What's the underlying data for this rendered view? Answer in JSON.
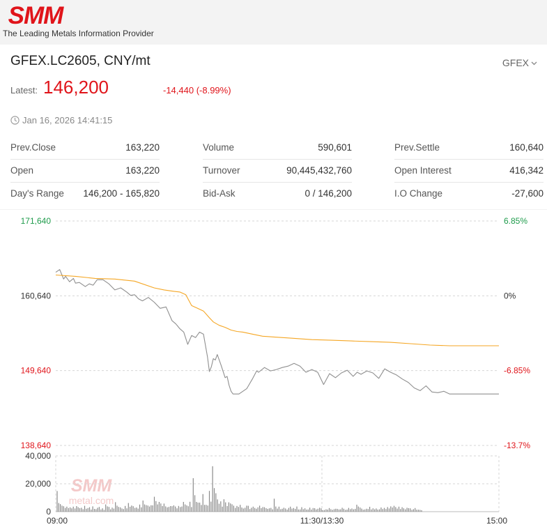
{
  "header": {
    "logo_text": "SMM",
    "tagline": "The Leading Metals Information Provider"
  },
  "quote": {
    "symbol_title": "GFEX.LC2605, CNY/mt",
    "exchange_selector": "GFEX",
    "latest_label": "Latest:",
    "latest_price": "146,200",
    "change": "-14,440 (-8.99%)",
    "timestamp": "Jan 16, 2026 14:41:15"
  },
  "stats": [
    [
      {
        "label": "Prev.Close",
        "value": "163,220"
      },
      {
        "label": "Open",
        "value": "163,220"
      },
      {
        "label": "Day's Range",
        "value": "146,200 - 165,820"
      }
    ],
    [
      {
        "label": "Volume",
        "value": "590,601"
      },
      {
        "label": "Turnover",
        "value": "90,445,432,760"
      },
      {
        "label": "Bid-Ask",
        "value": "0 / 146,200"
      }
    ],
    [
      {
        "label": "Prev.Settle",
        "value": "160,640"
      },
      {
        "label": "Open Interest",
        "value": "416,342"
      },
      {
        "label": "I.O Change",
        "value": "-27,600"
      }
    ]
  ],
  "colors": {
    "up": "#1e9b4b",
    "down": "#e0141a",
    "neutral": "#333333",
    "price_line": "#8f8f8f",
    "avg_line": "#f5a623",
    "volume_bar": "#8a8a8a",
    "grid": "#d6d6d6",
    "watermark": "#f4c9c9"
  },
  "chart_data": [
    {
      "type": "line",
      "ylim": [
        138640,
        171640
      ],
      "reference": 160640,
      "left_ticks": [
        {
          "value": 171640,
          "label": "171,640",
          "tone": "up"
        },
        {
          "value": 160640,
          "label": "160,640",
          "tone": "neutral"
        },
        {
          "value": 149640,
          "label": "149,640",
          "tone": "down"
        },
        {
          "value": 138640,
          "label": "138,640",
          "tone": "down"
        }
      ],
      "right_ticks": [
        {
          "value": 171640,
          "label": "6.85%",
          "tone": "up"
        },
        {
          "value": 160640,
          "label": "0%",
          "tone": "neutral"
        },
        {
          "value": 149640,
          "label": "-6.85%",
          "tone": "down"
        },
        {
          "value": 138640,
          "label": "-13.7%",
          "tone": "down"
        }
      ],
      "x_range": [
        0,
        225
      ],
      "series": [
        {
          "role": "price",
          "x": [
            0,
            2,
            3,
            4,
            5,
            7,
            9,
            10,
            12,
            15,
            17,
            19,
            21,
            24,
            27,
            30,
            33,
            36,
            38,
            40,
            42,
            44,
            47,
            50,
            53,
            56,
            59,
            61,
            63,
            65,
            67,
            69,
            71,
            73,
            75,
            77,
            78,
            79,
            80,
            81,
            82,
            84,
            86,
            87,
            88,
            89,
            90,
            91,
            93,
            97,
            100,
            102,
            103,
            106,
            109,
            112,
            115,
            118,
            121,
            124,
            127,
            130,
            133,
            136,
            139,
            142,
            145,
            148,
            151,
            153,
            155,
            158,
            161,
            164,
            167,
            170,
            173,
            176,
            179,
            182,
            185,
            188,
            191,
            194,
            197,
            200,
            203,
            206,
            209,
            212,
            215,
            218,
            221,
            225
          ],
          "values": [
            164100,
            164500,
            163800,
            163100,
            163500,
            162700,
            163200,
            162500,
            162600,
            162000,
            162400,
            162200,
            163000,
            163000,
            162400,
            161500,
            161800,
            161200,
            160700,
            160800,
            160200,
            159900,
            160400,
            159700,
            158800,
            159000,
            157000,
            156500,
            155800,
            155300,
            153500,
            154800,
            154500,
            155300,
            155000,
            151700,
            149500,
            150200,
            151400,
            151200,
            152000,
            150400,
            148600,
            148800,
            147500,
            146600,
            146200,
            146200,
            146200,
            147000,
            148500,
            149600,
            149400,
            150100,
            149600,
            149800,
            150100,
            150300,
            150700,
            150300,
            149400,
            149800,
            149400,
            147600,
            149200,
            148600,
            149300,
            149700,
            148800,
            149400,
            149100,
            149600,
            149300,
            148500,
            149900,
            149400,
            149000,
            148400,
            147900,
            147100,
            146700,
            147400,
            146500,
            146400,
            146600,
            146200,
            146200,
            146200,
            146200,
            146200,
            146200,
            146200,
            146200,
            146200
          ]
        },
        {
          "role": "average",
          "x": [
            0,
            10,
            20,
            30,
            40,
            50,
            55,
            60,
            63,
            66,
            69,
            72,
            75,
            78,
            80,
            83,
            86,
            89,
            92,
            95,
            100,
            105,
            110,
            120,
            130,
            140,
            150,
            160,
            170,
            180,
            190,
            200,
            210,
            225
          ],
          "values": [
            163700,
            163500,
            163200,
            163100,
            162800,
            161800,
            161500,
            161300,
            161200,
            160800,
            159200,
            158800,
            158400,
            157400,
            156800,
            156300,
            156000,
            155600,
            155400,
            155300,
            155000,
            154700,
            154600,
            154400,
            154200,
            154100,
            154000,
            153900,
            153800,
            153600,
            153400,
            153300,
            153300,
            153300
          ]
        }
      ]
    },
    {
      "type": "bar",
      "ylim": [
        0,
        40000
      ],
      "y_ticks": [
        {
          "value": 40000,
          "label": "40,000"
        },
        {
          "value": 20000,
          "label": "20,000"
        },
        {
          "value": 0,
          "label": "0"
        }
      ],
      "x_ticks": [
        {
          "x": 0,
          "label": "09:00"
        },
        {
          "x": 135,
          "label": "11:30/13:30"
        },
        {
          "x": 225,
          "label": "15:00"
        }
      ],
      "watermark": {
        "logo": "SMM",
        "site": "metal.com"
      },
      "values": [
        14800,
        6200,
        5400,
        4300,
        3900,
        2700,
        3600,
        2600,
        3100,
        2400,
        3600,
        2300,
        4000,
        3200,
        2500,
        2800,
        1800,
        4200,
        2100,
        2600,
        3200,
        1500,
        3800,
        2000,
        1800,
        2800,
        3400,
        1600,
        2400,
        1300,
        5200,
        3800,
        3400,
        1700,
        2900,
        2200,
        6800,
        4300,
        3400,
        3100,
        2300,
        1900,
        4100,
        2400,
        6200,
        3500,
        4400,
        3900,
        2700,
        3000,
        2200,
        5100,
        3100,
        8000,
        5200,
        4700,
        4400,
        3700,
        4600,
        4500,
        10700,
        7600,
        5200,
        7000,
        5900,
        4000,
        5800,
        3800,
        3100,
        3400,
        4000,
        3900,
        4500,
        3700,
        2400,
        4100,
        3300,
        3700,
        7000,
        5200,
        4500,
        3900,
        7100,
        3300,
        24000,
        11800,
        7000,
        6500,
        6500,
        4800,
        12600,
        4900,
        4900,
        4400,
        14900,
        7200,
        32600,
        16900,
        13200,
        8800,
        5700,
        7400,
        3600,
        8900,
        6700,
        4000,
        6700,
        5900,
        5300,
        4300,
        2700,
        4100,
        3400,
        4900,
        3000,
        2300,
        2800,
        4300,
        4200,
        1900,
        2800,
        3600,
        2700,
        2100,
        3100,
        4300,
        2500,
        3300,
        3200,
        2500,
        2000,
        2400,
        2700,
        1700,
        9300,
        3700,
        2200,
        3600,
        1800,
        2100,
        2800,
        2300,
        1500,
        2700,
        3600,
        2200,
        2600,
        2000,
        3700,
        1600,
        1600,
        3200,
        1800,
        2400,
        1500,
        1600,
        2900,
        1500,
        2600,
        2500,
        1600,
        2100,
        2800,
        2400,
        1100,
        1200,
        1700,
        1500,
        2600,
        1800,
        1300,
        1800,
        2100,
        2000,
        1600,
        1700,
        2800,
        2100,
        1300,
        1500,
        2700,
        1800,
        2300,
        1700,
        2000,
        5000,
        3700,
        3000,
        2200,
        1400,
        1600,
        2100,
        1900,
        3500,
        1600,
        2400,
        1700,
        2300,
        1500,
        1700,
        3000,
        1900,
        2700,
        1900,
        3300,
        2300,
        3800,
        3000,
        4200,
        3300,
        2200,
        3600,
        1900,
        3200,
        2400,
        1700,
        2800,
        2500,
        2400,
        1300,
        1800,
        2600,
        1400,
        1400,
        1300,
        1000
      ]
    }
  ]
}
